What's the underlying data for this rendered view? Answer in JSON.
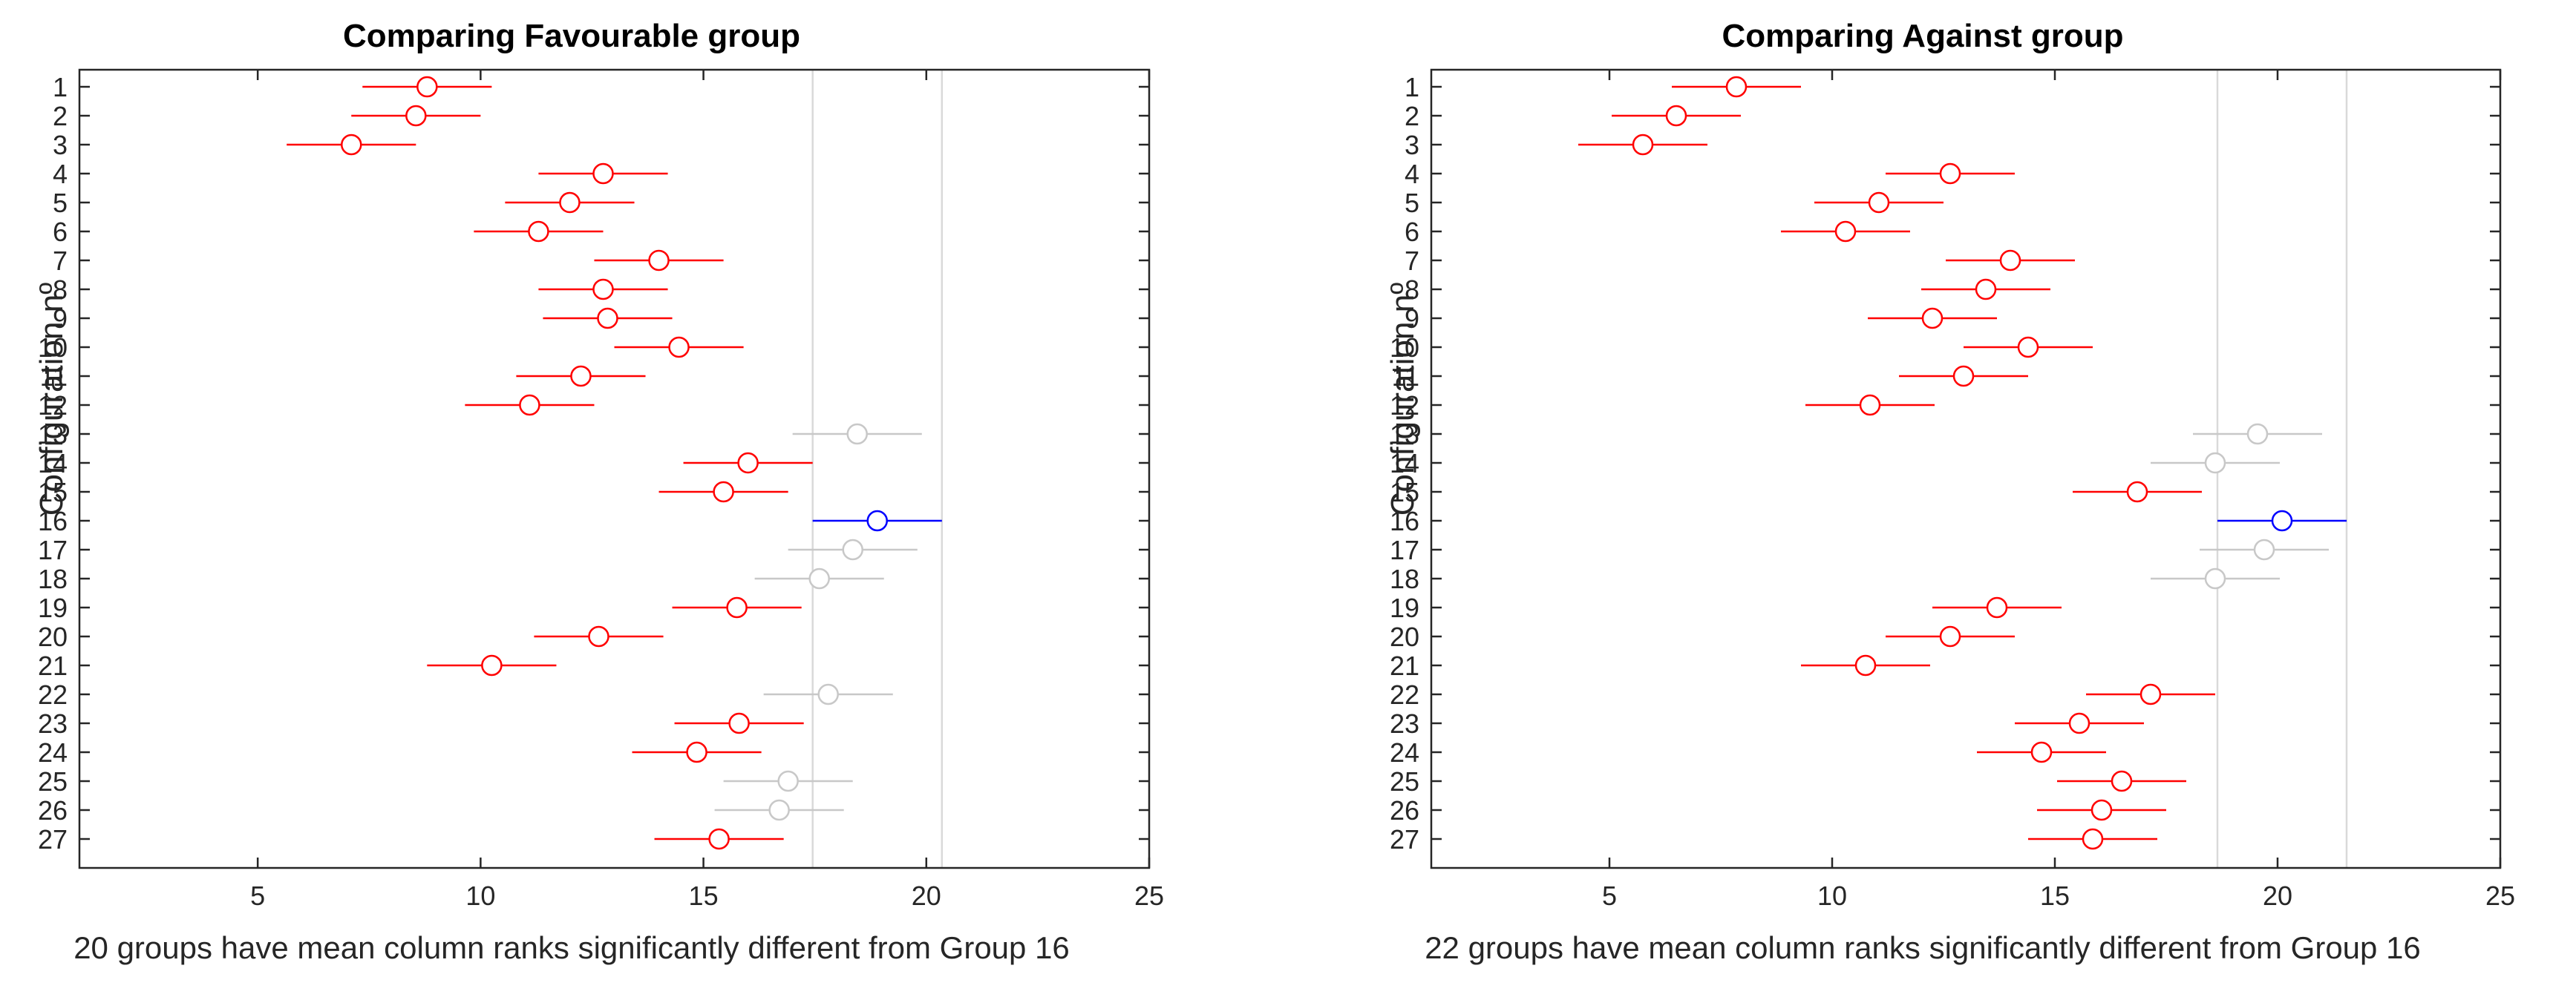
{
  "chart_data": [
    {
      "type": "scatter",
      "title": "Comparing Favourable group",
      "ylabel": "Configuration nº",
      "xlabel": "20 groups have mean column ranks significantly different from Group 16",
      "xlim": [
        1,
        25
      ],
      "xticks": [
        5,
        10,
        15,
        20,
        25
      ],
      "categories": [
        "1",
        "2",
        "3",
        "4",
        "5",
        "6",
        "7",
        "8",
        "9",
        "10",
        "11",
        "12",
        "13",
        "14",
        "15",
        "16",
        "17",
        "18",
        "19",
        "20",
        "21",
        "22",
        "23",
        "24",
        "25",
        "26",
        "27"
      ],
      "means": [
        8.8,
        8.55,
        7.1,
        12.75,
        12.0,
        11.3,
        14.0,
        12.75,
        12.85,
        14.45,
        12.25,
        11.1,
        18.45,
        16.0,
        15.45,
        18.9,
        18.35,
        17.6,
        15.75,
        12.65,
        10.25,
        17.8,
        15.8,
        14.85,
        16.9,
        16.7,
        15.35
      ],
      "half_width": 1.45,
      "status": [
        "diff",
        "diff",
        "diff",
        "diff",
        "diff",
        "diff",
        "diff",
        "diff",
        "diff",
        "diff",
        "diff",
        "diff",
        "same",
        "diff",
        "diff",
        "ref",
        "same",
        "same",
        "diff",
        "diff",
        "diff",
        "same",
        "diff",
        "diff",
        "same",
        "same",
        "diff"
      ],
      "ref_group": 16,
      "ref_lines": [
        17.45,
        20.35
      ]
    },
    {
      "type": "scatter",
      "title": "Comparing Against group",
      "ylabel": "Configuration nº",
      "xlabel": "22 groups have mean column ranks significantly different from Group 16",
      "xlim": [
        1,
        25
      ],
      "xticks": [
        5,
        10,
        15,
        20,
        25
      ],
      "categories": [
        "1",
        "2",
        "3",
        "4",
        "5",
        "6",
        "7",
        "8",
        "9",
        "10",
        "11",
        "12",
        "13",
        "14",
        "15",
        "16",
        "17",
        "18",
        "19",
        "20",
        "21",
        "22",
        "23",
        "24",
        "25",
        "26",
        "27"
      ],
      "means": [
        7.85,
        6.5,
        5.75,
        12.65,
        11.05,
        10.3,
        14.0,
        13.45,
        12.25,
        14.4,
        12.95,
        10.85,
        19.55,
        18.6,
        16.85,
        20.1,
        19.7,
        18.6,
        13.7,
        12.65,
        10.75,
        17.15,
        15.55,
        14.7,
        16.5,
        16.05,
        15.85
      ],
      "half_width": 1.45,
      "status": [
        "diff",
        "diff",
        "diff",
        "diff",
        "diff",
        "diff",
        "diff",
        "diff",
        "diff",
        "diff",
        "diff",
        "diff",
        "same",
        "same",
        "diff",
        "ref",
        "same",
        "same",
        "diff",
        "diff",
        "diff",
        "diff",
        "diff",
        "diff",
        "diff",
        "diff",
        "diff"
      ],
      "ref_group": 16,
      "ref_lines": [
        18.65,
        21.55
      ]
    }
  ],
  "colors": {
    "diff": "#ff0000",
    "ref": "#0000ff",
    "same": "#c8c8c8",
    "refline": "#d9d9d9",
    "axis": "#262626"
  }
}
